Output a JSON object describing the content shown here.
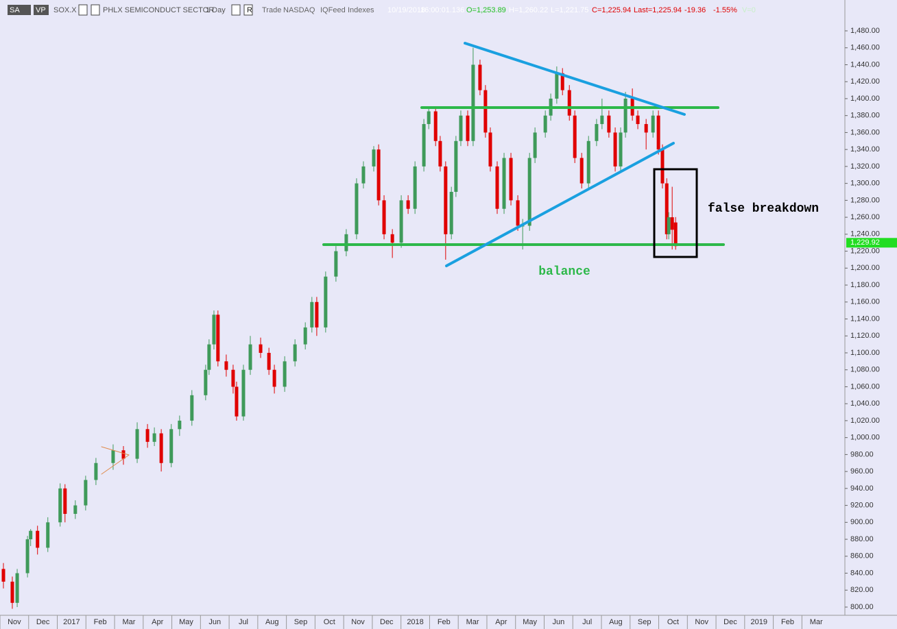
{
  "chart_data": {
    "type": "candlestick",
    "header": [
      "SA",
      "VP",
      "SOX.X",
      "PHLX SEMICONDUCT SECTOR",
      "1 Day",
      "R",
      "Trade",
      "NASDAQ",
      "IQFeed",
      "Indexes",
      "10/19/2018",
      "16:00:01.136",
      "O=1,253.89",
      "H=1,260.22",
      "L=1,221.75",
      "C=1,225.94",
      "Last=1,225.94",
      "-19.36",
      "-1.55%",
      "V=0"
    ],
    "annotations": [
      "balance",
      "false breakdown"
    ],
    "up_color": "#3f9a5a",
    "down_color": "#e00000",
    "x": [
      -0.38,
      -0.07,
      0.1,
      0.46,
      0.57,
      0.81,
      1.17,
      1.6,
      1.77,
      2.13,
      2.49,
      2.85,
      3.45,
      3.81,
      4.29,
      4.65,
      4.89,
      5.13,
      5.48,
      5.77,
      6.2,
      6.68,
      6.8,
      6.97,
      7.11,
      7.4,
      7.64,
      7.76,
      8.0,
      8.24,
      8.6,
      8.89,
      9.08,
      9.44,
      9.8,
      10.16,
      10.39,
      10.56,
      10.87,
      11.23,
      11.59,
      11.95,
      12.19,
      12.55,
      12.72,
      12.91,
      13.2,
      13.51,
      13.75,
      13.99,
      14.3,
      14.47,
      14.71,
      14.87,
      15.06,
      15.26,
      15.42,
      15.59,
      15.83,
      16.02,
      16.26,
      16.45,
      16.62,
      16.86,
      17.1,
      17.34,
      17.58,
      17.75,
      17.99,
      18.18,
      18.54,
      18.73,
      18.94,
      19.14,
      19.38,
      19.57,
      19.81,
      20.05,
      20.33,
      20.52,
      20.76,
      20.98,
      21.17,
      21.34,
      21.58,
      21.77,
      22.06,
      22.3,
      22.49,
      22.63,
      22.78,
      22.85,
      22.97,
      23.09
    ],
    "open": [
      845,
      830,
      805,
      840,
      880,
      890,
      870,
      900,
      940,
      910,
      920,
      950,
      970,
      985,
      975,
      1010,
      995,
      1005,
      970,
      1010,
      1020,
      1050,
      1080,
      1110,
      1145,
      1090,
      1080,
      1060,
      1025,
      1080,
      1110,
      1100,
      1080,
      1060,
      1090,
      1110,
      1130,
      1160,
      1130,
      1190,
      1220,
      1240,
      1300,
      1320,
      1340,
      1280,
      1240,
      1230,
      1280,
      1270,
      1320,
      1370,
      1385,
      1350,
      1320,
      1240,
      1290,
      1350,
      1380,
      1350,
      1440,
      1410,
      1360,
      1320,
      1270,
      1330,
      1280,
      1250,
      1250,
      1330,
      1360,
      1380,
      1400,
      1430,
      1410,
      1380,
      1330,
      1300,
      1350,
      1370,
      1380,
      1360,
      1320,
      1360,
      1400,
      1380,
      1370,
      1360,
      1380,
      1340,
      1300,
      1240,
      1260,
      1253.89
    ],
    "high": [
      852,
      836,
      845,
      884,
      892,
      896,
      906,
      946,
      945,
      926,
      955,
      976,
      992,
      990,
      1018,
      1016,
      1012,
      1010,
      1016,
      1026,
      1056,
      1086,
      1116,
      1150,
      1150,
      1098,
      1086,
      1066,
      1086,
      1120,
      1118,
      1106,
      1086,
      1096,
      1116,
      1136,
      1166,
      1166,
      1196,
      1226,
      1246,
      1306,
      1326,
      1344,
      1346,
      1286,
      1246,
      1286,
      1286,
      1326,
      1376,
      1390,
      1390,
      1356,
      1326,
      1296,
      1356,
      1386,
      1386,
      1460,
      1446,
      1416,
      1366,
      1326,
      1336,
      1336,
      1286,
      1258,
      1336,
      1366,
      1386,
      1406,
      1438,
      1436,
      1416,
      1386,
      1336,
      1356,
      1376,
      1400,
      1386,
      1366,
      1366,
      1408,
      1412,
      1386,
      1376,
      1386,
      1386,
      1346,
      1306,
      1266,
      1296,
      1260.22
    ],
    "low": [
      822,
      798,
      800,
      835,
      872,
      862,
      865,
      895,
      900,
      904,
      914,
      944,
      962,
      968,
      970,
      988,
      990,
      960,
      965,
      1002,
      1014,
      1044,
      1074,
      1104,
      1084,
      1072,
      1052,
      1020,
      1020,
      1074,
      1094,
      1074,
      1052,
      1054,
      1084,
      1104,
      1124,
      1120,
      1124,
      1184,
      1214,
      1234,
      1294,
      1314,
      1274,
      1234,
      1212,
      1224,
      1264,
      1264,
      1314,
      1364,
      1344,
      1314,
      1210,
      1234,
      1284,
      1344,
      1344,
      1344,
      1404,
      1354,
      1314,
      1264,
      1264,
      1274,
      1244,
      1222,
      1244,
      1324,
      1354,
      1374,
      1394,
      1404,
      1374,
      1324,
      1294,
      1294,
      1344,
      1364,
      1354,
      1314,
      1314,
      1354,
      1374,
      1364,
      1340,
      1354,
      1334,
      1294,
      1234,
      1234,
      1222,
      1221.75
    ],
    "close": [
      830,
      805,
      840,
      880,
      890,
      870,
      900,
      940,
      910,
      920,
      950,
      970,
      985,
      975,
      1010,
      995,
      1005,
      970,
      1010,
      1020,
      1050,
      1080,
      1110,
      1145,
      1090,
      1080,
      1060,
      1025,
      1080,
      1110,
      1100,
      1080,
      1060,
      1090,
      1110,
      1130,
      1160,
      1130,
      1190,
      1220,
      1240,
      1300,
      1320,
      1340,
      1280,
      1240,
      1230,
      1280,
      1270,
      1320,
      1370,
      1385,
      1350,
      1320,
      1240,
      1290,
      1350,
      1380,
      1350,
      1440,
      1410,
      1360,
      1320,
      1270,
      1330,
      1280,
      1250,
      1250,
      1330,
      1360,
      1380,
      1400,
      1430,
      1410,
      1380,
      1330,
      1300,
      1350,
      1370,
      1380,
      1360,
      1320,
      1360,
      1400,
      1380,
      1370,
      1360,
      1380,
      1340,
      1300,
      1240,
      1260,
      1245.3,
      1225.94
    ],
    "price_marker": {
      "value": 1229.92,
      "label": "1,229.92"
    },
    "xlim": [
      -0.5,
      29
    ],
    "xticks": [
      {
        "value": 0,
        "label": "Nov"
      },
      {
        "value": 1,
        "label": "Dec"
      },
      {
        "value": 2,
        "label": "2017"
      },
      {
        "value": 3,
        "label": "Feb"
      },
      {
        "value": 4,
        "label": "Mar"
      },
      {
        "value": 5,
        "label": "Apr"
      },
      {
        "value": 6,
        "label": "May"
      },
      {
        "value": 7,
        "label": "Jun"
      },
      {
        "value": 8,
        "label": "Jul"
      },
      {
        "value": 9,
        "label": "Aug"
      },
      {
        "value": 10,
        "label": "Sep"
      },
      {
        "value": 11,
        "label": "Oct"
      },
      {
        "value": 12,
        "label": "Nov"
      },
      {
        "value": 13,
        "label": "Dec"
      },
      {
        "value": 14,
        "label": "2018"
      },
      {
        "value": 15,
        "label": "Feb"
      },
      {
        "value": 16,
        "label": "Mar"
      },
      {
        "value": 17,
        "label": "Apr"
      },
      {
        "value": 18,
        "label": "May"
      },
      {
        "value": 19,
        "label": "Jun"
      },
      {
        "value": 20,
        "label": "Jul"
      },
      {
        "value": 21,
        "label": "Aug"
      },
      {
        "value": 22,
        "label": "Sep"
      },
      {
        "value": 23,
        "label": "Oct"
      },
      {
        "value": 24,
        "label": "Nov"
      },
      {
        "value": 25,
        "label": "Dec"
      },
      {
        "value": 26,
        "label": "2019"
      },
      {
        "value": 27,
        "label": "Feb"
      },
      {
        "value": 28,
        "label": "Mar"
      }
    ],
    "ylim": [
      790.3,
      1516.4
    ],
    "yticks": [
      {
        "value": 800,
        "label": "800.00"
      },
      {
        "value": 820,
        "label": "820.00"
      },
      {
        "value": 840,
        "label": "840.00"
      },
      {
        "value": 860,
        "label": "860.00"
      },
      {
        "value": 880,
        "label": "880.00"
      },
      {
        "value": 900,
        "label": "900.00"
      },
      {
        "value": 920,
        "label": "920.00"
      },
      {
        "value": 940,
        "label": "940.00"
      },
      {
        "value": 960,
        "label": "960.00"
      },
      {
        "value": 980,
        "label": "980.00"
      },
      {
        "value": 1000,
        "label": "1,000.00"
      },
      {
        "value": 1020,
        "label": "1,020.00"
      },
      {
        "value": 1040,
        "label": "1,040.00"
      },
      {
        "value": 1060,
        "label": "1,060.00"
      },
      {
        "value": 1080,
        "label": "1,080.00"
      },
      {
        "value": 1100,
        "label": "1,100.00"
      },
      {
        "value": 1120,
        "label": "1,120.00"
      },
      {
        "value": 1140,
        "label": "1,140.00"
      },
      {
        "value": 1160,
        "label": "1,160.00"
      },
      {
        "value": 1180,
        "label": "1,180.00"
      },
      {
        "value": 1200,
        "label": "1,200.00"
      },
      {
        "value": 1220,
        "label": "1,220.00"
      },
      {
        "value": 1240,
        "label": "1,240.00"
      },
      {
        "value": 1260,
        "label": "1,260.00"
      },
      {
        "value": 1280,
        "label": "1,280.00"
      },
      {
        "value": 1300,
        "label": "1,300.00"
      },
      {
        "value": 1320,
        "label": "1,320.00"
      },
      {
        "value": 1340,
        "label": "1,340.00"
      },
      {
        "value": 1360,
        "label": "1,360.00"
      },
      {
        "value": 1380,
        "label": "1,380.00"
      },
      {
        "value": 1400,
        "label": "1,400.00"
      },
      {
        "value": 1420,
        "label": "1,420.00"
      },
      {
        "value": 1440,
        "label": "1,440.00"
      },
      {
        "value": 1460,
        "label": "1,460.00"
      },
      {
        "value": 1480,
        "label": "1,480.00"
      }
    ]
  }
}
